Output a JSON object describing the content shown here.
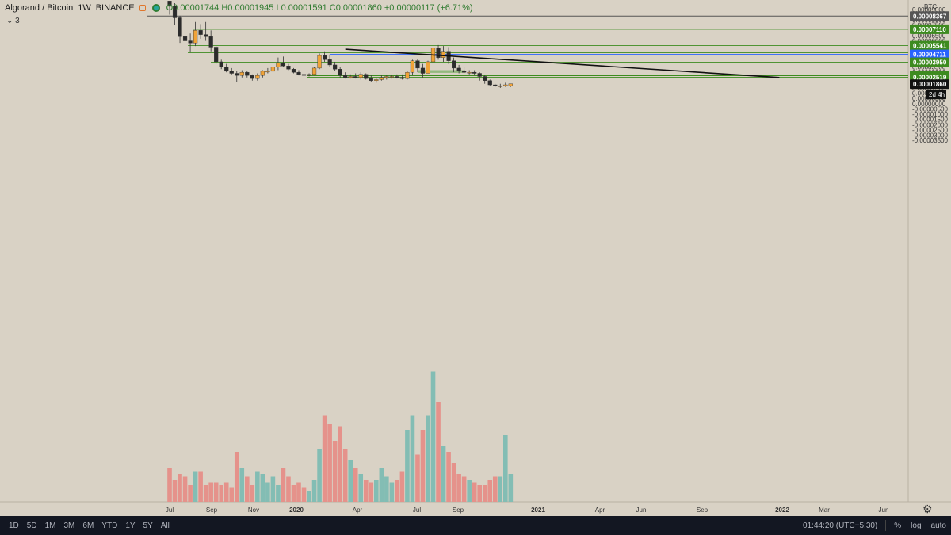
{
  "legend": {
    "symbol": "Algorand / Bitcoin",
    "interval": "1W",
    "exchange": "BINANCE",
    "ohlc": "O0.00001744 H0.00001945 L0.00001591 C0.00001860 +0.00000117 (+6.71%)"
  },
  "sub_legend": "⌄ 3",
  "price_axis_unit": "BTC",
  "countdown": "2d 4h",
  "bottom_bar": {
    "ranges": [
      "1D",
      "5D",
      "1M",
      "3M",
      "6M",
      "YTD",
      "1Y",
      "5Y",
      "All"
    ],
    "clock": "01:44:20 (UTC+5:30)",
    "percent": "%",
    "log": "log",
    "auto": "auto"
  },
  "colors": {
    "background": "#d9d2c5",
    "up": "#f0a338",
    "down": "#2b2b2b",
    "vol_up": "#83bdb4",
    "vol_down": "#e5928b",
    "green_level": "#3d8b1f",
    "blue_level": "#2962ff",
    "gray_level": "#555555"
  },
  "chart_data": {
    "type": "candlestick",
    "y_unit": "BTC",
    "ylim": [
      -3.8e-05,
      9.9e-06
    ],
    "price_ticks": [
      "0.00009500",
      "0.00009000",
      "0.00008500",
      "0.00008000",
      "0.00007500",
      "0.00007000",
      "0.00006500",
      "0.00006000",
      "0.00005500",
      "0.00005000",
      "0.00004500",
      "0.00004000",
      "0.00003500",
      "0.00003000",
      "0.00002500",
      "0.00002000",
      "0.00001500",
      "0.00001000",
      "0.00000500",
      "0.00000000",
      "-0.00000500",
      "-0.00001000",
      "-0.00001500",
      "-0.00002000",
      "-0.00002500",
      "-0.00003000",
      "-0.00003500"
    ],
    "time_ticks": [
      "Jul",
      "Sep",
      "Nov",
      "2020",
      "Apr",
      "Jul",
      "Sep",
      "2021",
      "Apr",
      "Jun",
      "Sep",
      "2022",
      "Mar",
      "Jun"
    ],
    "time_tick_bold": [
      "2020",
      "2021",
      "2022"
    ],
    "levels": [
      {
        "label": "0.00008367",
        "value": 8.367e-06,
        "color": "gray"
      },
      {
        "label": "0.00007110",
        "value": 7.11e-06,
        "color": "green"
      },
      {
        "label": "0.00005541",
        "value": 5.541e-06,
        "color": "green"
      },
      {
        "label": "0.00004860",
        "value": 4.86e-06,
        "color": "green"
      },
      {
        "label": "0.00004711",
        "value": 4.711e-06,
        "color": "blue"
      },
      {
        "label": "0.00003950",
        "value": 3.95e-06,
        "color": "green"
      },
      {
        "label": "0.00002674",
        "value": 2.674e-06,
        "color": "green"
      },
      {
        "label": "0.00002519",
        "value": 2.519e-06,
        "color": "green"
      },
      {
        "label": "0.00001860",
        "value": 1.86e-06,
        "color": "current"
      }
    ],
    "trendlines": [
      {
        "name": "upper",
        "from": [
          34,
          5.2e-06
        ],
        "to": [
          118,
          2.5e-06
        ]
      },
      {
        "name": "lower",
        "from": [
          20,
          2.35e-05
        ],
        "to": [
          118,
          1.23e-05
        ]
      }
    ],
    "candles": [
      [
        9.8e-06,
        9.8e-06,
        8.5e-06,
        9.3e-06,
        0.6
      ],
      [
        9.3e-06,
        9.6e-06,
        7.5e-06,
        8.2e-06,
        0.4
      ],
      [
        8.2e-06,
        8.4e-06,
        5.8e-06,
        6.4e-06,
        0.5
      ],
      [
        6.4e-06,
        7.4e-06,
        5.5e-06,
        6e-06,
        0.45
      ],
      [
        6e-06,
        6.7e-06,
        4.9e-06,
        5.8e-06,
        0.3
      ],
      [
        5.8e-06,
        7.8e-06,
        5.5e-06,
        7e-06,
        0.55
      ],
      [
        7e-06,
        7.6e-06,
        6.2e-06,
        6.6e-06,
        0.55
      ],
      [
        6.6e-06,
        7.8e-06,
        6e-06,
        6.4e-06,
        0.3
      ],
      [
        6.4e-06,
        7e-06,
        5e-06,
        5.4e-06,
        0.35
      ],
      [
        5.4e-06,
        5.5e-06,
        3.8e-06,
        4e-06,
        0.35
      ],
      [
        4e-06,
        4.2e-06,
        3.3e-06,
        3.5e-06,
        0.3
      ],
      [
        3.5e-06,
        3.8e-06,
        3e-06,
        3.1e-06,
        0.35
      ],
      [
        3.1e-06,
        3.4e-06,
        2.8e-06,
        2.9e-06,
        0.25
      ],
      [
        2.9e-06,
        3.1e-06,
        2.1e-06,
        2.7e-06,
        0.9
      ],
      [
        2.7e-06,
        3.2e-06,
        2.5e-06,
        3e-06,
        0.6
      ],
      [
        3e-06,
        3.1e-06,
        2.5e-06,
        2.7e-06,
        0.45
      ],
      [
        2.7e-06,
        2.8e-06,
        2.2e-06,
        2.4e-06,
        0.3
      ],
      [
        2.4e-06,
        2.9e-06,
        2.2e-06,
        2.7e-06,
        0.55
      ],
      [
        2.7e-06,
        3.2e-06,
        2.5e-06,
        3.1e-06,
        0.5
      ],
      [
        3.1e-06,
        3.4e-06,
        2.9e-06,
        3.1e-06,
        0.35
      ],
      [
        3.1e-06,
        3.7e-06,
        2.9e-06,
        3.5e-06,
        0.45
      ],
      [
        3.5e-06,
        4.4e-06,
        3.2e-06,
        3.9e-06,
        0.3
      ],
      [
        3.9e-06,
        4.5e-06,
        3.5e-06,
        3.6e-06,
        0.6
      ],
      [
        3.6e-06,
        3.8e-06,
        3.2e-06,
        3.3e-06,
        0.45
      ],
      [
        3.3e-06,
        3.4e-06,
        2.9e-06,
        3e-06,
        0.3
      ],
      [
        3e-06,
        3.2e-06,
        2.7e-06,
        2.8e-06,
        0.35
      ],
      [
        2.8e-06,
        3.1e-06,
        2.6e-06,
        2.7e-06,
        0.25
      ],
      [
        2.7e-06,
        2.9e-06,
        2.6e-06,
        2.8e-06,
        0.2
      ],
      [
        2.8e-06,
        3.5e-06,
        2.7e-06,
        3.4e-06,
        0.4
      ],
      [
        3.4e-06,
        4.8e-06,
        3.3e-06,
        4.6e-06,
        0.95
      ],
      [
        4.6e-06,
        5e-06,
        4e-06,
        4.2e-06,
        1.55
      ],
      [
        4.2e-06,
        4.7e-06,
        3.5e-06,
        3.7e-06,
        1.4
      ],
      [
        3.7e-06,
        4e-06,
        3.1e-06,
        3.3e-06,
        1.1
      ],
      [
        3.3e-06,
        3.5e-06,
        2.5e-06,
        2.7e-06,
        1.35
      ],
      [
        2.7e-06,
        3e-06,
        2.4e-06,
        2.5e-06,
        0.95
      ],
      [
        2.5e-06,
        2.8e-06,
        2.4e-06,
        2.6e-06,
        0.75
      ],
      [
        2.6e-06,
        2.9e-06,
        2.4e-06,
        2.5e-06,
        0.6
      ],
      [
        2.5e-06,
        3e-06,
        2.3e-06,
        2.8e-06,
        0.5
      ],
      [
        2.8e-06,
        2.9e-06,
        2.3e-06,
        2.4e-06,
        0.4
      ],
      [
        2.4e-06,
        2.7e-06,
        2.1e-06,
        2.2e-06,
        0.35
      ],
      [
        2.2e-06,
        2.4e-06,
        2e-06,
        2.3e-06,
        0.4
      ],
      [
        2.3e-06,
        2.7e-06,
        2.2e-06,
        2.5e-06,
        0.6
      ],
      [
        2.5e-06,
        2.7e-06,
        2.3e-06,
        2.6e-06,
        0.45
      ],
      [
        2.6e-06,
        2.7e-06,
        2.4e-06,
        2.6e-06,
        0.35
      ],
      [
        2.6e-06,
        2.8e-06,
        2.4e-06,
        2.5e-06,
        0.4
      ],
      [
        2.5e-06,
        2.8e-06,
        2.3e-06,
        2.4e-06,
        0.55
      ],
      [
        2.4e-06,
        3.1e-06,
        2.3e-06,
        3e-06,
        1.3
      ],
      [
        3e-06,
        4.2e-06,
        2.7e-06,
        4.1e-06,
        1.55
      ],
      [
        4.1e-06,
        4.3e-06,
        3e-06,
        3.4e-06,
        0.85
      ],
      [
        3.4e-06,
        3.8e-06,
        2.5e-06,
        2.9e-06,
        1.3
      ],
      [
        2.9e-06,
        4.1e-06,
        2.9e-06,
        4e-06,
        1.55
      ],
      [
        4e-06,
        5.9e-06,
        3.7e-06,
        5.3e-06,
        2.35
      ],
      [
        5.3e-06,
        5.6e-06,
        4.2e-06,
        4.4e-06,
        1.8
      ],
      [
        4.4e-06,
        5.5e-06,
        4e-06,
        5e-06,
        1.0
      ],
      [
        5e-06,
        5.4e-06,
        3.8e-06,
        4.1e-06,
        0.9
      ],
      [
        4.1e-06,
        4.4e-06,
        3e-06,
        3.4e-06,
        0.7
      ],
      [
        3.4e-06,
        3.7e-06,
        2.9e-06,
        3.1e-06,
        0.5
      ],
      [
        3.1e-06,
        3.5e-06,
        2.9e-06,
        3e-06,
        0.45
      ],
      [
        3e-06,
        3.2e-06,
        2.8e-06,
        3e-06,
        0.4
      ],
      [
        3e-06,
        3.2e-06,
        2.7e-06,
        2.9e-06,
        0.35
      ],
      [
        2.9e-06,
        3e-06,
        2.2e-06,
        2.6e-06,
        0.3
      ],
      [
        2.6e-06,
        2.7e-06,
        1.9e-06,
        2.2e-06,
        0.3
      ],
      [
        2.2e-06,
        2.3e-06,
        1.7e-06,
        1.8e-06,
        0.4
      ],
      [
        1.8e-06,
        1.9e-06,
        1.6e-06,
        1.7e-06,
        0.45
      ],
      [
        1.7e-06,
        1.9e-06,
        1.5e-06,
        1.7e-06,
        0.45
      ],
      [
        1.7e-06,
        2e-06,
        1.6e-06,
        1.8e-06,
        1.2
      ],
      [
        1.7e-06,
        1.9e-06,
        1.6e-06,
        1.9e-06,
        0.5
      ]
    ]
  }
}
